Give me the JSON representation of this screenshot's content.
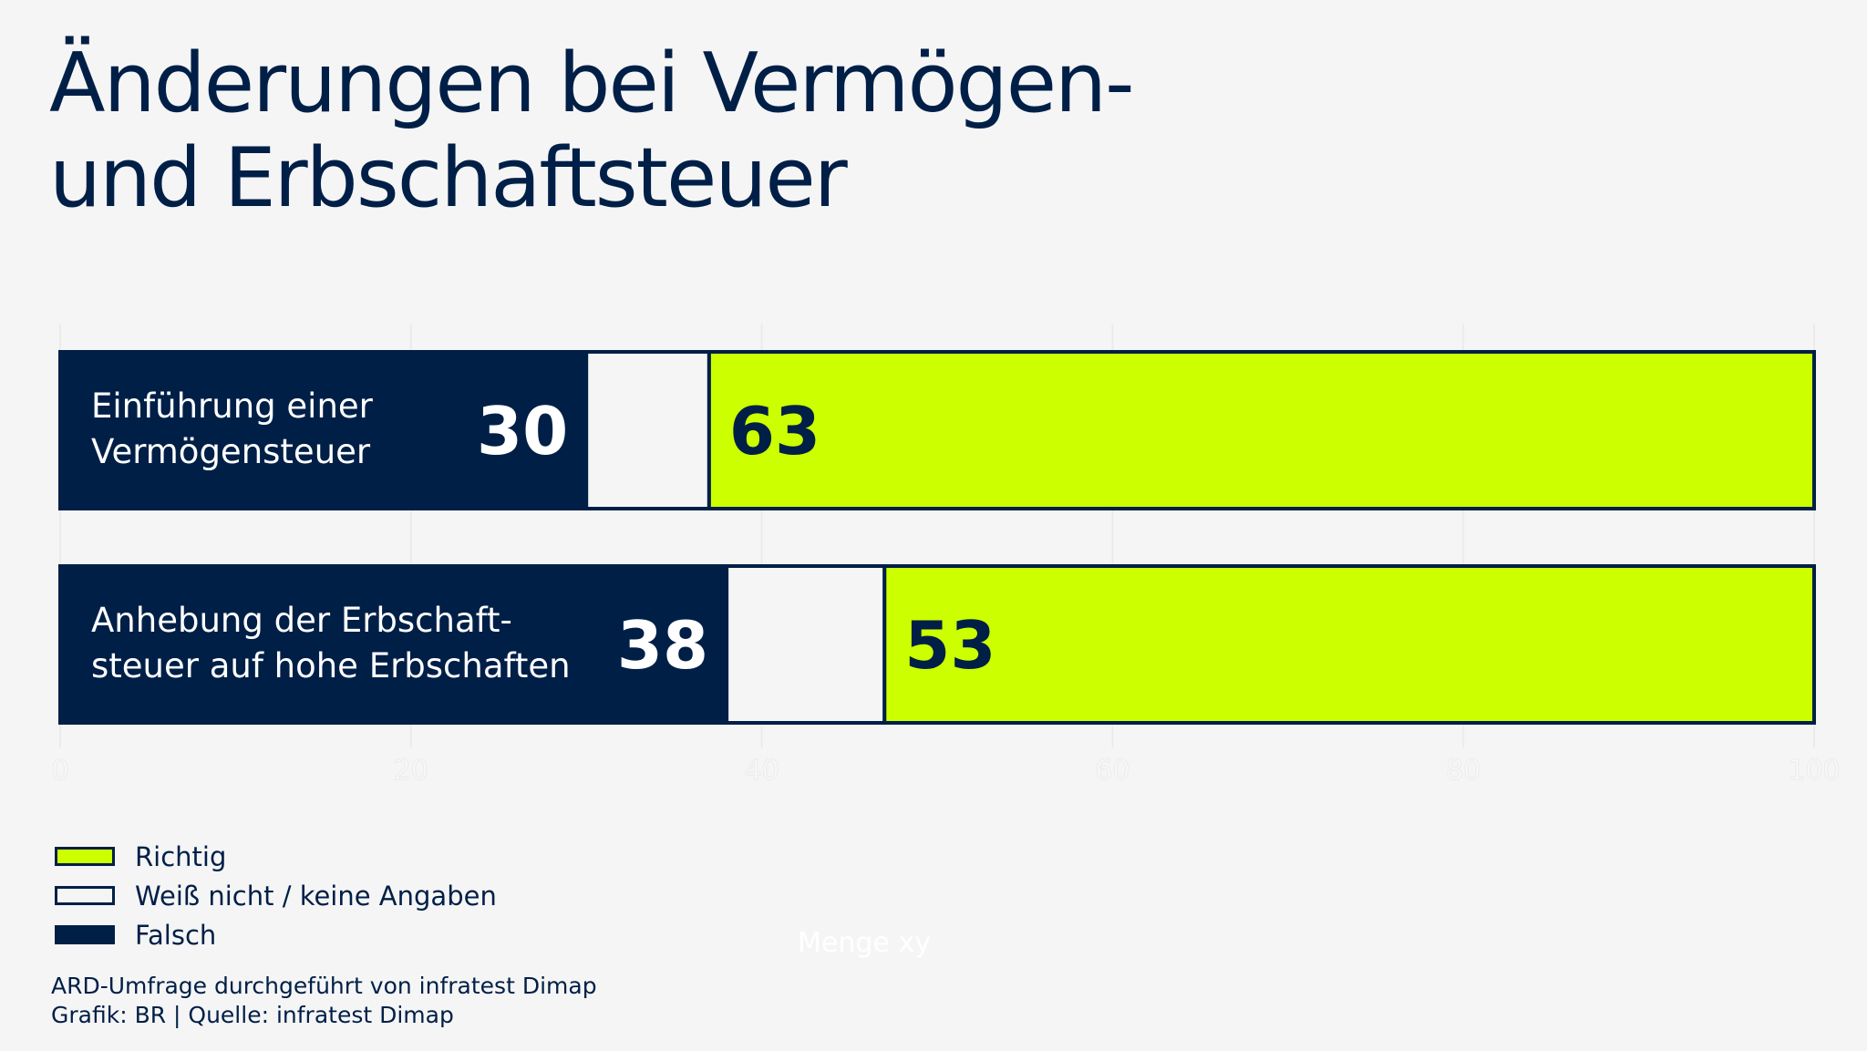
{
  "title_lines": [
    "Änderungen bei Vermögen-",
    "und Erbschaftsteuer"
  ],
  "colors": {
    "falsch": "#001f47",
    "weiss_nicht": "#f5f5f5",
    "richtig": "#ccff00",
    "background": "#f5f5f5",
    "text": "#001f47"
  },
  "chart_data": {
    "type": "bar",
    "orientation": "horizontal",
    "stacked": true,
    "categories": [
      [
        "Einführung einer",
        "Vermögensteuer"
      ],
      [
        "Anhebung der Erbschaft-",
        "steuer auf hohe Erbschaften"
      ]
    ],
    "series": [
      {
        "name": "Falsch",
        "values": [
          30,
          38
        ],
        "show_labels": true
      },
      {
        "name": "Weiß nicht / keine Angaben",
        "values": [
          7,
          9
        ],
        "show_labels": false
      },
      {
        "name": "Richtig",
        "values": [
          63,
          53
        ],
        "show_labels": true
      }
    ],
    "xlim": [
      0,
      100
    ],
    "x_ticks": [
      "0",
      "20",
      "40",
      "60",
      "80",
      "100"
    ],
    "xlabel": "Menge xy",
    "grid": true,
    "legend_position": "bottom-left"
  },
  "legend": [
    {
      "label": "Richtig",
      "color": "#ccff00"
    },
    {
      "label": "Weiß nicht / keine Angaben",
      "color": "#f5f5f5"
    },
    {
      "label": "Falsch",
      "color": "#001f47"
    }
  ],
  "footer": {
    "line1": "ARD-Umfrage durchgeführt von infratest Dimap",
    "line2": "Grafik: BR | Quelle: infratest Dimap"
  }
}
